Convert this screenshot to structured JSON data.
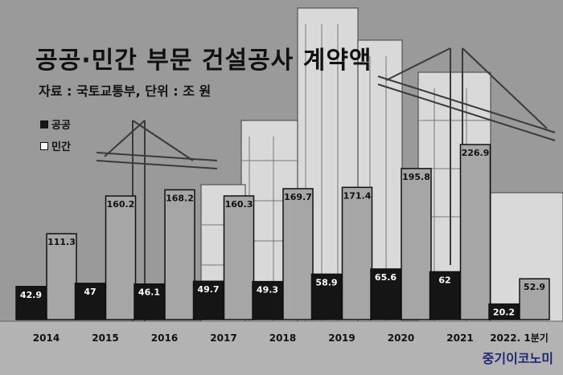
{
  "title": "공공·민간 부문 건설공사 계약액",
  "subtitle": "자료 : 국토교통부, 단위 : 조 원",
  "logo": "중기이코노미",
  "colors": {
    "background": "#9a9a9a",
    "public_bar": "#151515",
    "private_bar": "#a6a6a6"
  },
  "chart_data": {
    "type": "bar",
    "categories": [
      "2014",
      "2015",
      "2016",
      "2017",
      "2018",
      "2019",
      "2020",
      "2021",
      "2022. 1분기"
    ],
    "series": [
      {
        "name": "공공",
        "values": [
          42.9,
          47,
          46.1,
          49.7,
          49.3,
          58.9,
          65.6,
          62,
          20.2
        ],
        "labels": [
          "42.9",
          "47",
          "46.1",
          "49.7",
          "49.3",
          "58.9",
          "65.6",
          "62",
          "20.2"
        ]
      },
      {
        "name": "민간",
        "values": [
          111.3,
          160.2,
          168.2,
          160.3,
          169.7,
          171.4,
          195.8,
          226.9,
          52.9
        ],
        "labels": [
          "111.3",
          "160.2",
          "168.2",
          "160.3",
          "169.7",
          "171.4",
          "195.8",
          "226.9",
          "52.9"
        ]
      }
    ],
    "ylim": [
      0,
      226.9
    ],
    "grid": false,
    "legend_placement": "top-left"
  }
}
